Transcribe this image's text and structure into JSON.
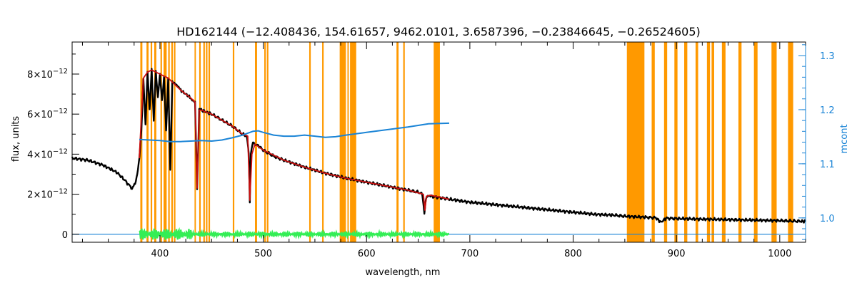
{
  "chart_data": {
    "type": "line",
    "title": "HD162144   (−12.408436, 154.61657, 9462.0101, 3.6587396, −0.23846645, −0.26524605)",
    "xlabel": "wavelength, nm",
    "ylabel": "flux, units",
    "y2label": "mcont",
    "xlim": [
      315,
      1025
    ],
    "ylim": [
      -0.4,
      9.6
    ],
    "y_scale_label": "×10",
    "y_exponent": "−12",
    "y2lim": [
      0.955,
      1.325
    ],
    "x_ticks": [
      400,
      500,
      600,
      700,
      800,
      900,
      1000
    ],
    "y_ticks": [
      {
        "value": 0,
        "label": "0",
        "exp": ""
      },
      {
        "value": 2,
        "label": "2",
        "exp": "−12"
      },
      {
        "value": 4,
        "label": "4",
        "exp": "−12"
      },
      {
        "value": 6,
        "label": "6",
        "exp": "−12"
      },
      {
        "value": 8,
        "label": "8",
        "exp": "−12"
      }
    ],
    "y2_ticks": [
      {
        "value": 1.0,
        "label": "1.0"
      },
      {
        "value": 1.1,
        "label": "1.1"
      },
      {
        "value": 1.2,
        "label": "1.2"
      },
      {
        "value": 1.3,
        "label": "1.3"
      }
    ],
    "colors": {
      "observed": "#000000",
      "model": "#cc1010",
      "mcont": "#1a84d6",
      "residual": "#33ee55",
      "mask": "#ff9900",
      "zero": "#1a84d6",
      "axis_right": "#1a84d6"
    },
    "mask_bands": [
      [
        381,
        383
      ],
      [
        387,
        389
      ],
      [
        391,
        392.5
      ],
      [
        394.5,
        396.5
      ],
      [
        400.5,
        402
      ],
      [
        403.5,
        406.5
      ],
      [
        408,
        409.5
      ],
      [
        411,
        412.5
      ],
      [
        413.5,
        415
      ],
      [
        433.5,
        434.8
      ],
      [
        438,
        439.5
      ],
      [
        442,
        443.5
      ],
      [
        444.5,
        446
      ],
      [
        447,
        448.5
      ],
      [
        470.5,
        472
      ],
      [
        492,
        494
      ],
      [
        501,
        502.5
      ],
      [
        503.5,
        505
      ],
      [
        544.5,
        546
      ],
      [
        557,
        558.5
      ],
      [
        574,
        580
      ],
      [
        581.5,
        582.8
      ],
      [
        584,
        590
      ],
      [
        629,
        631
      ],
      [
        635.5,
        637
      ],
      [
        665,
        671
      ],
      [
        852,
        869
      ],
      [
        876,
        879
      ],
      [
        888,
        891
      ],
      [
        898,
        901
      ],
      [
        907.5,
        910.5
      ],
      [
        918.5,
        921
      ],
      [
        929.5,
        932.5
      ],
      [
        934,
        936.5
      ],
      [
        944,
        947.5
      ],
      [
        960,
        963
      ],
      [
        975,
        978.5
      ],
      [
        992,
        997
      ],
      [
        1008,
        1013
      ]
    ],
    "observed": {
      "x": [
        315,
        330,
        345,
        358,
        366,
        370,
        373,
        376,
        378,
        380,
        382,
        384,
        386,
        388,
        390,
        392,
        394,
        396,
        398,
        400,
        402,
        404,
        406,
        408,
        410,
        412,
        414,
        416,
        418,
        420,
        425,
        430,
        432,
        434,
        436,
        438,
        440,
        445,
        450,
        460,
        470,
        480,
        484,
        486,
        487,
        488,
        490,
        492,
        496,
        500,
        510,
        520,
        540,
        560,
        580,
        600,
        620,
        640,
        650,
        654,
        656,
        657,
        658,
        660,
        662,
        680,
        700,
        720,
        740,
        760,
        780,
        800,
        820,
        840,
        850,
        870,
        880,
        885,
        890,
        900,
        920,
        940,
        960,
        980,
        1000,
        1010,
        1020,
        1025
      ],
      "y": [
        3.8,
        3.7,
        3.45,
        3.1,
        2.7,
        2.45,
        2.3,
        2.5,
        3.0,
        3.8,
        5.2,
        7.8,
        5.5,
        8.1,
        6.2,
        8.2,
        5.6,
        8.1,
        6.8,
        8.0,
        6.7,
        7.9,
        5.2,
        7.8,
        3.2,
        7.6,
        7.5,
        7.4,
        7.3,
        7.2,
        7.0,
        6.8,
        6.7,
        6.6,
        2.2,
        6.2,
        6.2,
        6.1,
        6.0,
        5.7,
        5.4,
        5.0,
        4.9,
        4.0,
        1.6,
        4.0,
        4.6,
        4.5,
        4.4,
        4.2,
        3.9,
        3.7,
        3.35,
        3.05,
        2.8,
        2.6,
        2.4,
        2.2,
        2.1,
        2.0,
        1.1,
        1.5,
        1.9,
        1.95,
        1.9,
        1.75,
        1.6,
        1.5,
        1.4,
        1.3,
        1.2,
        1.1,
        1.0,
        0.95,
        0.9,
        0.85,
        0.82,
        0.6,
        0.8,
        0.78,
        0.76,
        0.74,
        0.72,
        0.7,
        0.68,
        0.66,
        0.65,
        0.64
      ]
    },
    "model": {
      "x": [
        380,
        384,
        388,
        392,
        396,
        400,
        404,
        408,
        412,
        416,
        420,
        425,
        430,
        434,
        436,
        438,
        440,
        450,
        460,
        470,
        480,
        485,
        487,
        489,
        492,
        500,
        520,
        540,
        560,
        580,
        600,
        620,
        640,
        655,
        656.5,
        658,
        662,
        680
      ],
      "y": [
        3.8,
        7.8,
        8.1,
        8.2,
        8.1,
        8.0,
        7.9,
        7.8,
        7.6,
        7.4,
        7.2,
        7.0,
        6.8,
        6.6,
        2.3,
        6.2,
        6.2,
        6.0,
        5.7,
        5.4,
        5.0,
        4.9,
        1.7,
        4.0,
        4.5,
        4.2,
        3.7,
        3.35,
        3.05,
        2.8,
        2.6,
        2.4,
        2.2,
        2.0,
        1.2,
        1.9,
        1.95,
        1.75
      ]
    },
    "mcont": {
      "x": [
        380,
        390,
        400,
        410,
        420,
        430,
        440,
        450,
        460,
        470,
        480,
        490,
        495,
        500,
        510,
        520,
        530,
        540,
        550,
        560,
        570,
        580,
        600,
        620,
        640,
        660,
        680
      ],
      "y": [
        1.145,
        1.144,
        1.143,
        1.141,
        1.141,
        1.142,
        1.143,
        1.142,
        1.144,
        1.148,
        1.153,
        1.16,
        1.161,
        1.158,
        1.153,
        1.151,
        1.151,
        1.153,
        1.151,
        1.149,
        1.15,
        1.153,
        1.158,
        1.163,
        1.168,
        1.174,
        1.175
      ]
    },
    "zero_line": {
      "x": [
        315,
        1025
      ],
      "y": [
        0,
        0
      ]
    },
    "residual": {
      "x_range": [
        380,
        680
      ],
      "amplitude": 0.18
    }
  }
}
